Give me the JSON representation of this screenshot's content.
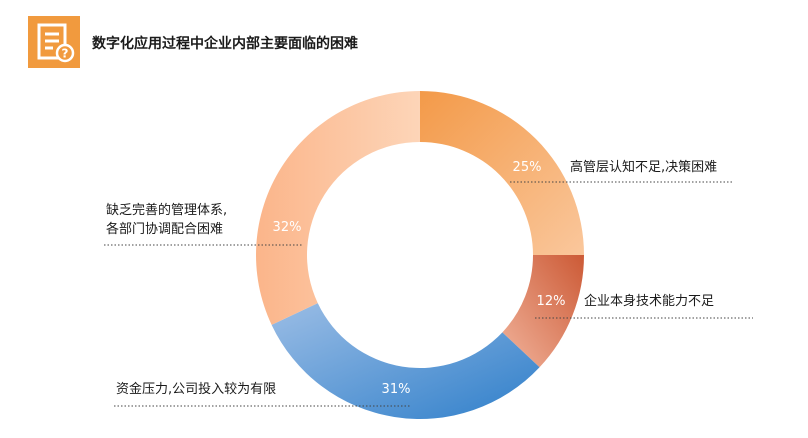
{
  "header": {
    "title": "数字化应用过程中企业内部主要面临的困难",
    "icon": "document-question-icon",
    "icon_color": "#f19a3e"
  },
  "chart_data": {
    "type": "pie",
    "donut": true,
    "title": "数字化应用过程中企业内部主要面临的困难",
    "legend": "none",
    "slices": [
      {
        "label": "高管层认知不足,决策困难",
        "value": 25,
        "value_label": "25%",
        "color_start": "#f39a49",
        "color_end": "#fac79c"
      },
      {
        "label": "企业本身技术能力不足",
        "value": 12,
        "value_label": "12%",
        "color_start": "#cc5a36",
        "color_end": "#f1b39b"
      },
      {
        "label": "资金压力,公司投入较为有限",
        "value": 31,
        "value_label": "31%",
        "color_start": "#2f7fca",
        "color_end": "#9bbde5"
      },
      {
        "label_lines": [
          "缺乏完善的管理体系,",
          "各部门协调配合困难"
        ],
        "value": 32,
        "value_label": "32%",
        "color_start": "#fbb58a",
        "color_end": "#fdd5b8"
      }
    ]
  }
}
